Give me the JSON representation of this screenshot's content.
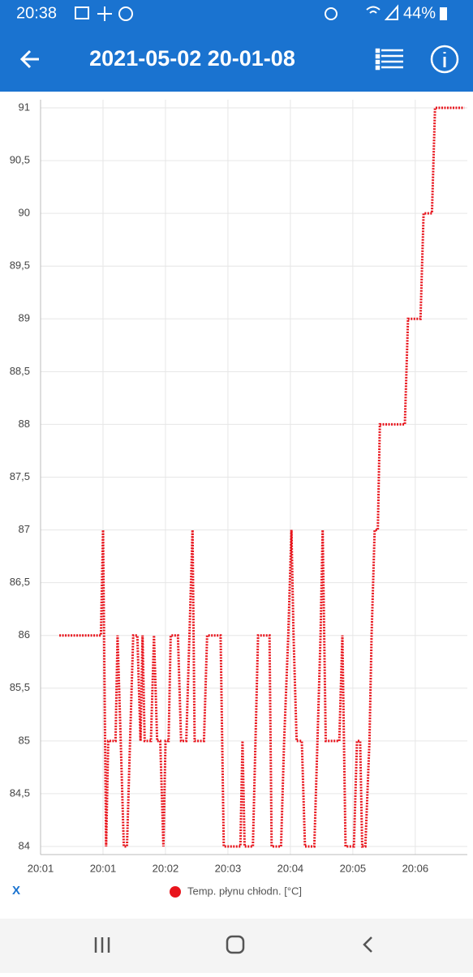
{
  "status_bar": {
    "time": "20:38",
    "battery": "44%"
  },
  "app_bar": {
    "title": "2021-05-02 20-01-08"
  },
  "x_axis_name": "X",
  "chart_data": {
    "type": "line",
    "x": [
      18,
      58,
      60,
      63,
      65,
      72,
      74,
      77,
      80,
      83,
      86,
      89,
      93,
      96,
      98,
      100,
      106,
      109,
      112,
      115,
      118,
      120,
      123,
      125,
      132,
      135,
      140,
      143,
      146,
      148,
      157,
      160,
      173,
      176,
      192,
      194,
      196,
      204,
      209,
      220,
      222,
      231,
      234,
      238,
      241,
      243,
      246,
      251,
      254,
      263,
      266,
      269,
      271,
      274,
      287,
      290,
      293,
      301,
      304,
      307,
      309,
      312,
      316,
      318,
      321,
      324,
      326,
      350,
      353,
      365,
      368,
      376,
      379,
      407
    ],
    "series": [
      {
        "name": "Temp. płynu chłodn. [°C]",
        "color": "#e8141c",
        "values": [
          86,
          86,
          87,
          84,
          85,
          85,
          86,
          85,
          84,
          84,
          85,
          86,
          86,
          85,
          86,
          85,
          85,
          86,
          85,
          85,
          84,
          85,
          85,
          86,
          86,
          85,
          85,
          86,
          87,
          85,
          85,
          86,
          86,
          84,
          84,
          85,
          84,
          84,
          86,
          86,
          84,
          84,
          85,
          86,
          87,
          86,
          85,
          85,
          84,
          84,
          85,
          86,
          87,
          85,
          85,
          86,
          84,
          84,
          85,
          85,
          84,
          84,
          85,
          86,
          87,
          87,
          88,
          88,
          89,
          89,
          90,
          90,
          91,
          91
        ]
      }
    ],
    "xlim": [
      0,
      410
    ],
    "xticks": [
      {
        "value": 0,
        "label": "20:01"
      },
      {
        "value": 60,
        "label": "20:01"
      },
      {
        "value": 120,
        "label": "20:02"
      },
      {
        "value": 180,
        "label": "20:03"
      },
      {
        "value": 240,
        "label": "20:04"
      },
      {
        "value": 300,
        "label": "20:05"
      },
      {
        "value": 360,
        "label": "20:06"
      }
    ],
    "ylim": [
      84,
      91
    ],
    "yticks": [
      84,
      {
        "value": 84.5,
        "label": "84,5"
      },
      85,
      {
        "value": 85.5,
        "label": "85,5"
      },
      86,
      {
        "value": 86.5,
        "label": "86,5"
      },
      87,
      {
        "value": 87.5,
        "label": "87,5"
      },
      88,
      {
        "value": 88.5,
        "label": "88,5"
      },
      89,
      {
        "value": 89.5,
        "label": "89,5"
      },
      90,
      {
        "value": 90.5,
        "label": "90,5"
      },
      91
    ],
    "grid": true
  }
}
